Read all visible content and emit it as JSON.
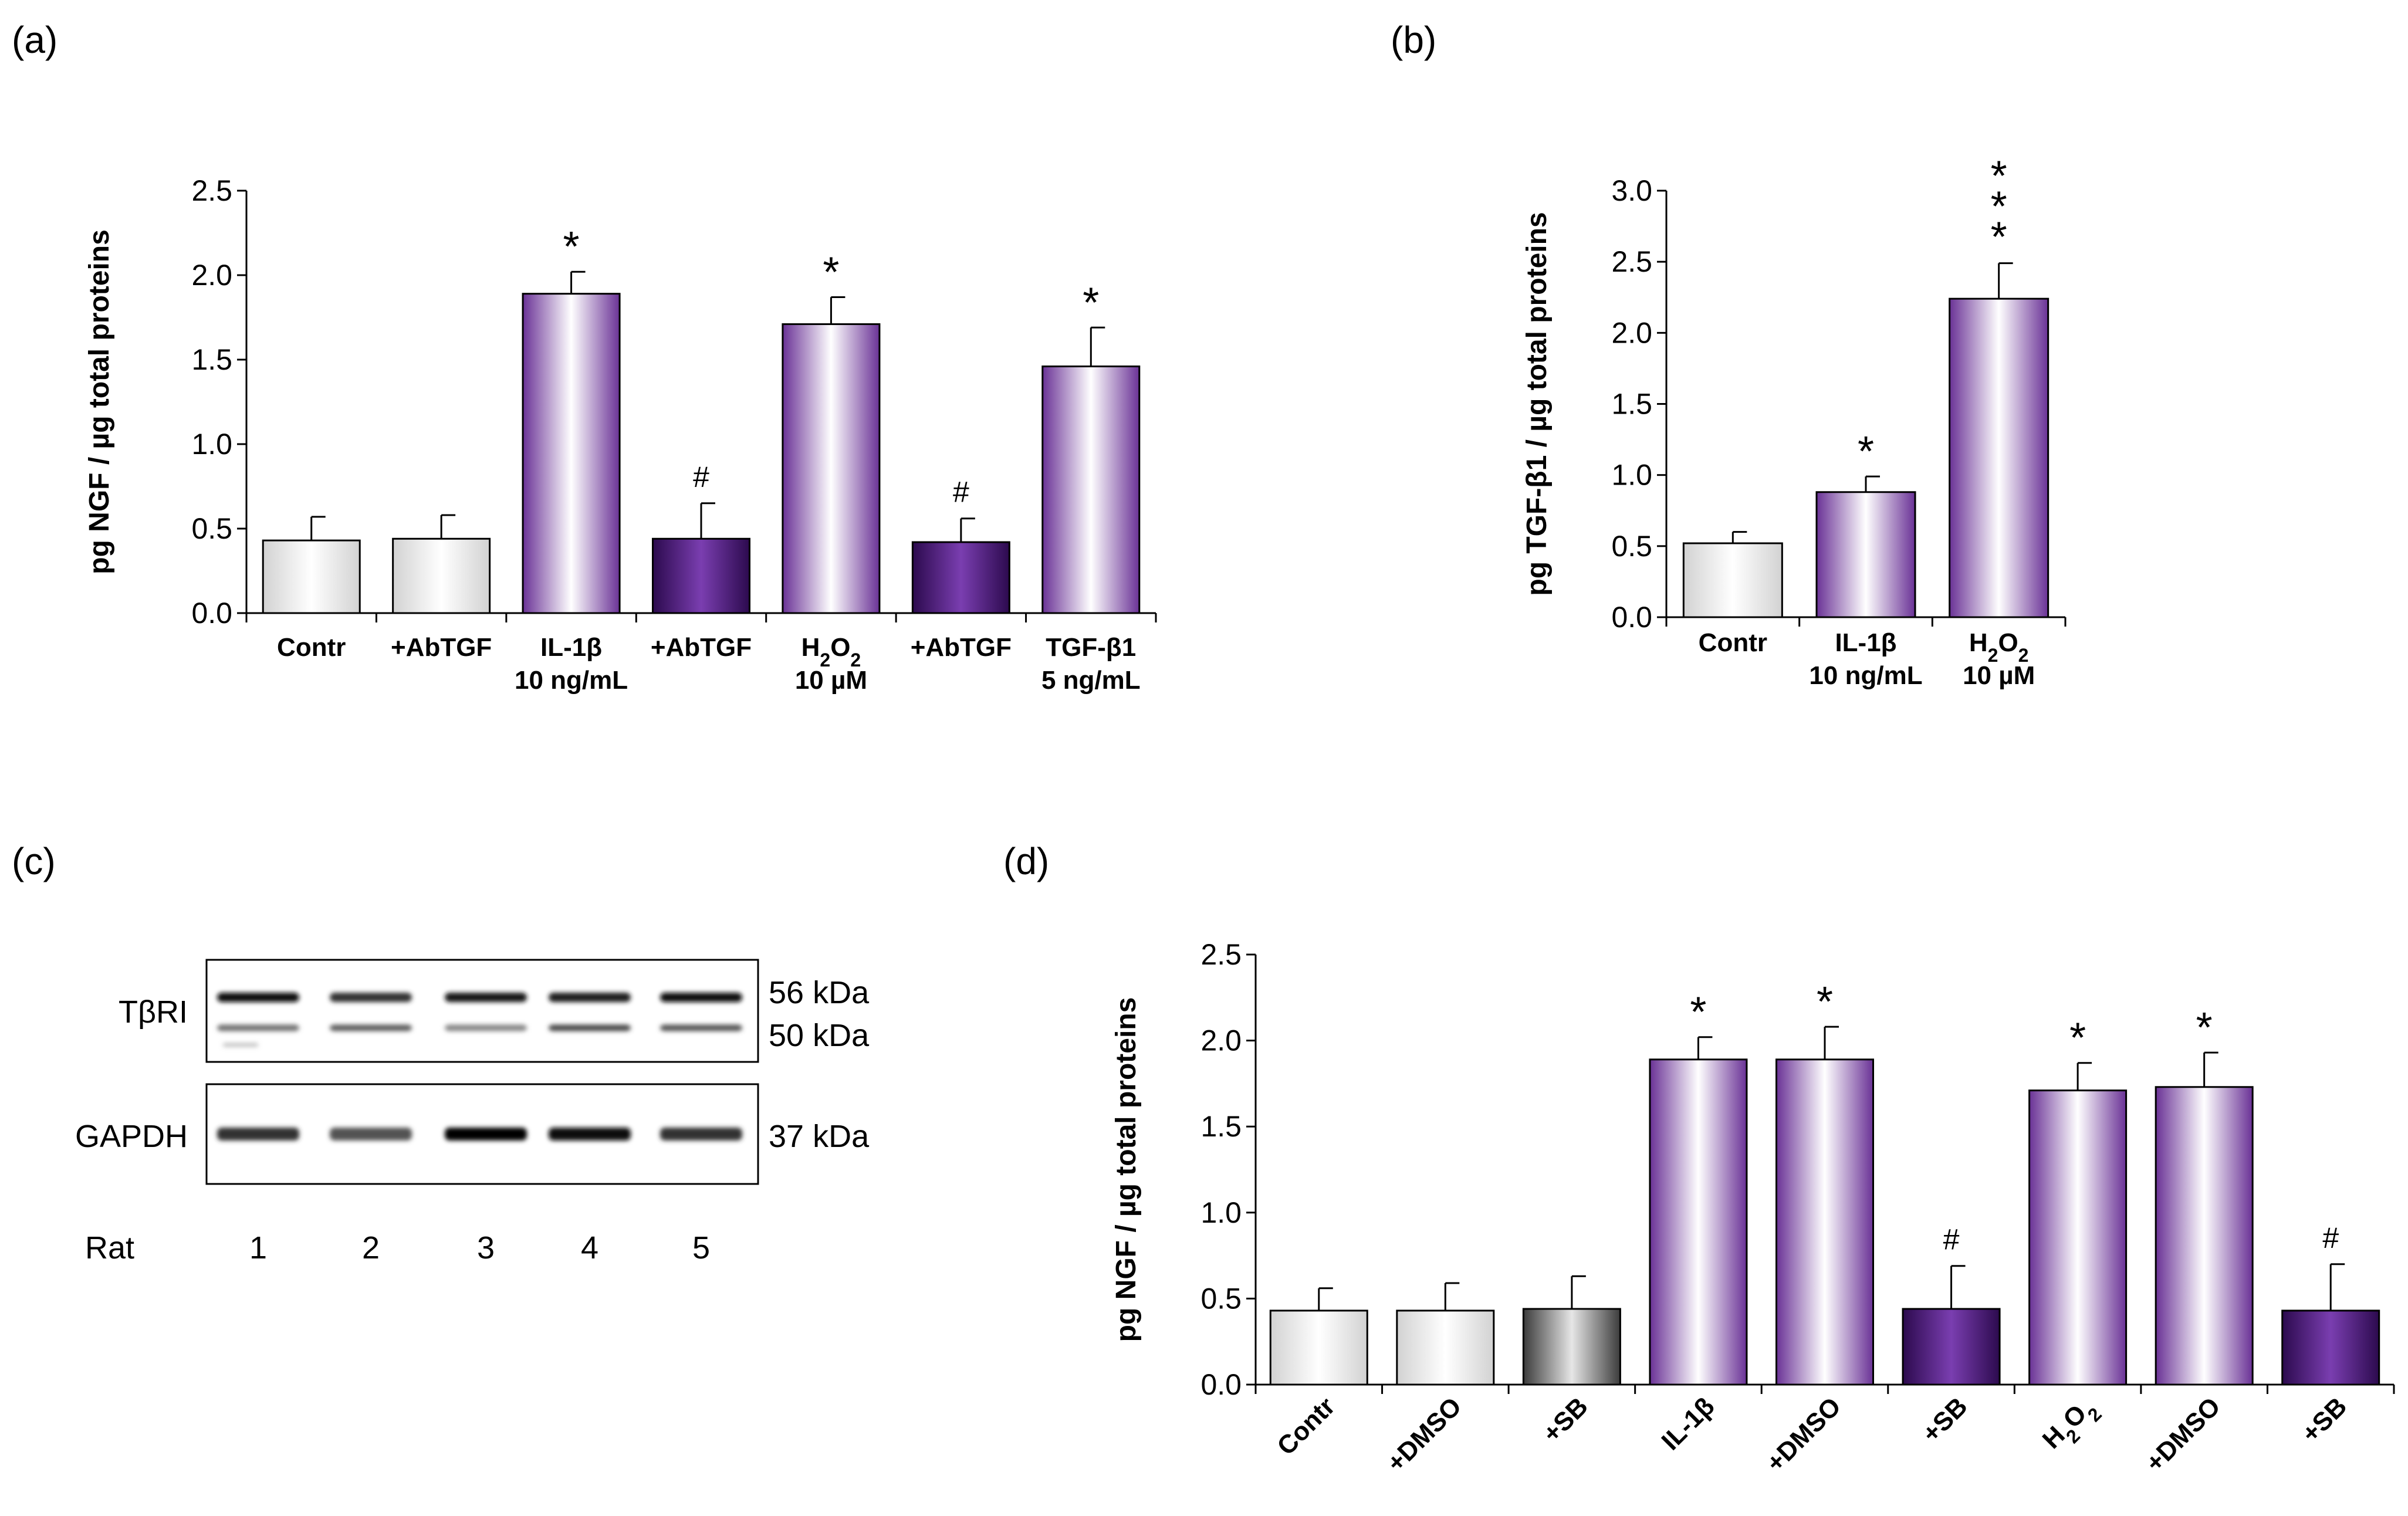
{
  "figure": {
    "panel_labels": {
      "a": "(a)",
      "b": "(b)",
      "c": "(c)",
      "d": "(d)"
    }
  },
  "colors": {
    "purple": "#6a3296",
    "dark_purple": "#2c0a4e",
    "light_gray": "#d2d2d2",
    "dark_gray": "#3c3c3c",
    "axis": "#000000"
  },
  "chart_data": [
    {
      "id": "a",
      "type": "bar",
      "ylabel": "pg NGF / µg total proteins",
      "ylim": [
        0,
        2.5
      ],
      "yticks": [
        "0.0",
        "0.5",
        "1.0",
        "1.5",
        "2.0",
        "2.5"
      ],
      "categories": [
        {
          "lines": [
            "Contr"
          ]
        },
        {
          "lines": [
            "+AbTGF"
          ]
        },
        {
          "lines": [
            "IL-1β",
            "10 ng/mL"
          ]
        },
        {
          "lines": [
            "+AbTGF"
          ]
        },
        {
          "lines": [
            "H₂O₂",
            "10 µM"
          ]
        },
        {
          "lines": [
            "+AbTGF"
          ]
        },
        {
          "lines": [
            "TGF-β1",
            "5 ng/mL"
          ]
        }
      ],
      "values": [
        0.43,
        0.44,
        1.89,
        0.44,
        1.71,
        0.42,
        1.46
      ],
      "errors": [
        0.14,
        0.14,
        0.13,
        0.21,
        0.16,
        0.14,
        0.23
      ],
      "styles": [
        "gray",
        "gray",
        "purple",
        "darkpurple",
        "purple",
        "darkpurple",
        "purple"
      ],
      "marks": [
        "",
        "",
        "*",
        "#",
        "*",
        "#",
        "*"
      ]
    },
    {
      "id": "b",
      "type": "bar",
      "ylabel": "pg TGF-β1 / µg total proteins",
      "ylim": [
        0,
        3.0
      ],
      "yticks": [
        "0.0",
        "0.5",
        "1.0",
        "1.5",
        "2.0",
        "2.5",
        "3.0"
      ],
      "categories": [
        {
          "lines": [
            "Contr"
          ]
        },
        {
          "lines": [
            "IL-1β",
            "10 ng/mL"
          ]
        },
        {
          "lines": [
            "H₂O₂",
            "10 µM"
          ]
        }
      ],
      "values": [
        0.52,
        0.88,
        2.24
      ],
      "errors": [
        0.08,
        0.11,
        0.25
      ],
      "styles": [
        "gray",
        "purple",
        "purple"
      ],
      "marks": [
        "",
        "*",
        "***"
      ]
    },
    {
      "id": "d",
      "type": "bar",
      "ylabel": "pg NGF / µg total proteins",
      "ylim": [
        0,
        2.5
      ],
      "yticks": [
        "0.0",
        "0.5",
        "1.0",
        "1.5",
        "2.0",
        "2.5"
      ],
      "categories": [
        {
          "lines": [
            "Contr"
          ]
        },
        {
          "lines": [
            "+DMSO"
          ]
        },
        {
          "lines": [
            "+SB"
          ]
        },
        {
          "lines": [
            "IL-1β"
          ]
        },
        {
          "lines": [
            "+DMSO"
          ]
        },
        {
          "lines": [
            "+SB"
          ]
        },
        {
          "lines": [
            "H₂O₂"
          ]
        },
        {
          "lines": [
            "+DMSO"
          ]
        },
        {
          "lines": [
            "+SB"
          ]
        }
      ],
      "values": [
        0.43,
        0.43,
        0.44,
        1.89,
        1.89,
        0.44,
        1.71,
        1.73,
        0.43
      ],
      "errors": [
        0.13,
        0.16,
        0.19,
        0.13,
        0.19,
        0.25,
        0.16,
        0.2,
        0.27
      ],
      "styles": [
        "gray",
        "gray",
        "darkgray",
        "purple",
        "purple",
        "darkpurple",
        "purple",
        "purple",
        "darkpurple"
      ],
      "marks": [
        "",
        "",
        "",
        "*",
        "*",
        "#",
        "*",
        "*",
        "#"
      ]
    }
  ],
  "blot": {
    "rows": [
      {
        "label": "TβRI",
        "kda": [
          "56 kDa",
          "50 kDa"
        ]
      },
      {
        "label": "GAPDH",
        "kda": [
          "37 kDa"
        ]
      }
    ],
    "lane_title": "Rat",
    "lanes": [
      "1",
      "2",
      "3",
      "4",
      "5"
    ],
    "band_intensity": {
      "TβRI_56": [
        0.95,
        0.75,
        0.9,
        0.85,
        0.95
      ],
      "TβRI_50": [
        0.45,
        0.55,
        0.35,
        0.65,
        0.6
      ],
      "GAPDH_37": [
        0.75,
        0.6,
        1.0,
        0.95,
        0.75
      ]
    }
  }
}
